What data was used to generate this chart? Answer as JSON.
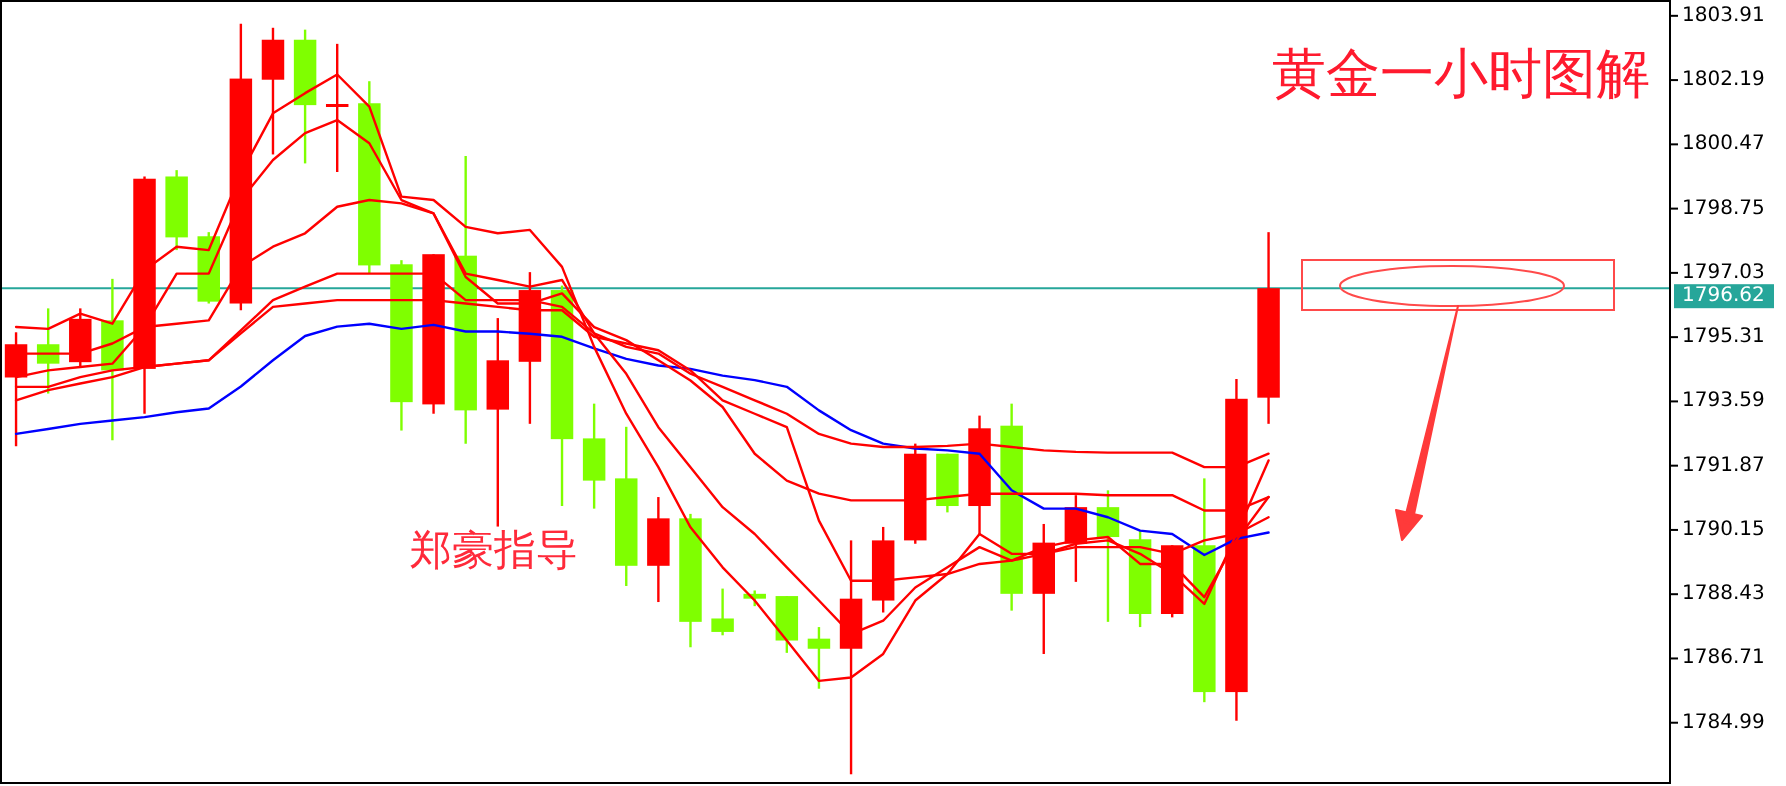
{
  "chart_data": {
    "type": "candlestick",
    "title": "黄金一小时图解",
    "annotations": [
      "郑豪指导"
    ],
    "categories": [
      null,
      null,
      null,
      null,
      null,
      null,
      null,
      null,
      null,
      null,
      null,
      null,
      null,
      null,
      null,
      null,
      null,
      null,
      null,
      null,
      null,
      null,
      null,
      null,
      null,
      null,
      null,
      null,
      null,
      null,
      null,
      null,
      null,
      null,
      null,
      null,
      null,
      null,
      null,
      null,
      null,
      null,
      null,
      null,
      null,
      null,
      null,
      null,
      null,
      null,
      null,
      null
    ],
    "ohlc": [
      [
        1794.23,
        1795.44,
        1792.39,
        1795.12
      ],
      [
        1795.12,
        1796.08,
        1793.8,
        1794.6
      ],
      [
        1794.64,
        1796.08,
        1794.51,
        1795.8
      ],
      [
        1795.76,
        1796.87,
        1792.55,
        1794.42
      ],
      [
        1794.46,
        1799.61,
        1793.26,
        1799.55
      ],
      [
        1799.61,
        1799.78,
        1797.64,
        1797.98
      ],
      [
        1798.01,
        1798.12,
        1796.21,
        1796.26
      ],
      [
        1796.21,
        1803.7,
        1796.03,
        1802.23
      ],
      [
        1802.2,
        1803.59,
        1800.2,
        1803.27
      ],
      [
        1803.27,
        1803.54,
        1799.96,
        1801.52
      ],
      [
        1801.52,
        1803.16,
        1799.73,
        1801.55
      ],
      [
        1801.57,
        1802.16,
        1797.01,
        1797.23
      ],
      [
        1797.26,
        1797.37,
        1792.81,
        1793.57
      ],
      [
        1793.51,
        1797.53,
        1793.26,
        1797.53
      ],
      [
        1797.49,
        1800.16,
        1792.46,
        1793.35
      ],
      [
        1793.37,
        1795.82,
        1790.24,
        1794.69
      ],
      [
        1794.65,
        1797.05,
        1792.99,
        1796.57
      ],
      [
        1796.57,
        1796.69,
        1790.79,
        1792.58
      ],
      [
        1792.6,
        1793.53,
        1790.72,
        1791.47
      ],
      [
        1791.53,
        1792.91,
        1788.65,
        1789.19
      ],
      [
        1789.19,
        1791.03,
        1788.22,
        1790.46
      ],
      [
        1790.46,
        1790.58,
        1787.01,
        1787.69
      ],
      [
        1787.78,
        1788.58,
        1787.33,
        1787.42
      ],
      [
        1788.44,
        1788.53,
        1788.11,
        1788.31
      ],
      [
        1788.38,
        1788.38,
        1786.86,
        1787.19
      ],
      [
        1787.24,
        1787.55,
        1785.9,
        1786.97
      ],
      [
        1786.97,
        1789.87,
        1783.61,
        1788.31
      ],
      [
        1788.26,
        1790.23,
        1787.94,
        1789.87
      ],
      [
        1789.87,
        1792.46,
        1789.78,
        1792.19
      ],
      [
        1792.19,
        1792.19,
        1790.62,
        1790.79
      ],
      [
        1790.79,
        1793.21,
        1790.04,
        1792.87
      ],
      [
        1792.94,
        1793.53,
        1787.99,
        1788.44
      ],
      [
        1788.44,
        1790.31,
        1786.83,
        1789.81
      ],
      [
        1789.78,
        1791.08,
        1788.76,
        1790.76
      ],
      [
        1790.76,
        1791.21,
        1787.69,
        1789.96
      ],
      [
        1789.9,
        1790.14,
        1787.55,
        1787.9
      ],
      [
        1787.9,
        1789.74,
        1787.81,
        1789.74
      ],
      [
        1789.74,
        1791.53,
        1785.54,
        1785.81
      ],
      [
        1785.81,
        1794.19,
        1785.04,
        1793.66
      ],
      [
        1793.69,
        1798.12,
        1792.99,
        1796.62
      ],
      null,
      null,
      null,
      null,
      null,
      null,
      null,
      null,
      null,
      null,
      null,
      null
    ],
    "colors": [
      "#ff0000",
      "#7fff00",
      "#ff0000",
      "#7fff00",
      "#ff0000",
      "#7fff00",
      "#7fff00",
      "#ff0000",
      "#ff0000",
      "#7fff00",
      "#ff0000",
      "#7fff00",
      "#7fff00",
      "#ff0000",
      "#7fff00",
      "#ff0000",
      "#ff0000",
      "#7fff00",
      "#7fff00",
      "#7fff00",
      "#ff0000",
      "#7fff00",
      "#7fff00",
      "#7fff00",
      "#7fff00",
      "#7fff00",
      "#ff0000",
      "#ff0000",
      "#ff0000",
      "#7fff00",
      "#ff0000",
      "#7fff00",
      "#ff0000",
      "#ff0000",
      "#7fff00",
      "#7fff00",
      "#ff0000",
      "#7fff00",
      "#ff0000",
      "#ff0000",
      null,
      null,
      null,
      null,
      null,
      null,
      null,
      null,
      null,
      null,
      null,
      null
    ],
    "series": [
      {
        "type": "line",
        "color": "#0000ff",
        "values": [
          1792.72,
          1792.85,
          1792.99,
          1793.08,
          1793.17,
          1793.3,
          1793.4,
          1793.99,
          1794.69,
          1795.34,
          1795.59,
          1795.67,
          1795.53,
          1795.64,
          1795.46,
          1795.46,
          1795.4,
          1795.32,
          1795.01,
          1794.73,
          1794.55,
          1794.46,
          1794.28,
          1794.16,
          1793.98,
          1793.35,
          1792.82,
          1792.46,
          1792.33,
          1792.28,
          1792.19,
          1791.21,
          1790.72,
          1790.72,
          1790.49,
          1790.13,
          1790.04,
          1789.48,
          1789.91,
          1790.08,
          null,
          null,
          null,
          null,
          null,
          null,
          null,
          null,
          null,
          null,
          null,
          null
        ]
      },
      {
        "type": "line",
        "color": "#ff0000",
        "values": [
          1795.58,
          1795.53,
          1795.94,
          1795.67,
          1797.1,
          1797.73,
          1797.64,
          1799.69,
          1801.3,
          1801.84,
          1802.34,
          1801.48,
          1799.07,
          1798.98,
          1798.26,
          1798.09,
          1798.18,
          1797.19,
          1795.05,
          1793.26,
          1791.83,
          1790.22,
          1789.15,
          1788.26,
          1787.19,
          1786.11,
          1786.2,
          1786.83,
          1788.26,
          1788.97,
          1790.04,
          1789.51,
          1789.51,
          1789.78,
          1789.87,
          1789.51,
          1788.97,
          1788.17,
          1790.04,
          1792.01,
          null,
          null,
          null,
          null,
          null,
          null,
          null,
          null,
          null,
          null,
          null,
          null
        ]
      },
      {
        "type": "line",
        "color": "#ff0000",
        "values": [
          1794.87,
          1794.87,
          1794.87,
          1795.14,
          1795.58,
          1797.01,
          1797.01,
          1798.98,
          1800.05,
          1800.77,
          1801.12,
          1800.5,
          1798.98,
          1798.62,
          1797.01,
          1796.84,
          1796.66,
          1796.84,
          1795.41,
          1794.33,
          1792.9,
          1791.83,
          1790.76,
          1790.04,
          1789.15,
          1788.26,
          1787.36,
          1787.72,
          1788.61,
          1789.15,
          1789.69,
          1789.33,
          1789.69,
          1789.87,
          1789.96,
          1789.24,
          1789.24,
          1788.35,
          1789.87,
          1791.03,
          null,
          null,
          null,
          null,
          null,
          null,
          null,
          null,
          null,
          null,
          null,
          null
        ]
      },
      {
        "type": "line",
        "color": "#ff0000",
        "values": [
          1794.24,
          1794.42,
          1794.51,
          1794.6,
          1795.58,
          1795.67,
          1795.76,
          1797.19,
          1797.73,
          1798.09,
          1798.8,
          1798.98,
          1798.89,
          1798.62,
          1796.92,
          1796.21,
          1796.21,
          1796.48,
          1795.58,
          1795.23,
          1794.69,
          1794.15,
          1793.44,
          1792.19,
          1791.47,
          1791.12,
          1790.94,
          1790.94,
          1790.94,
          1791.03,
          1791.12,
          1791.12,
          1791.12,
          1791.12,
          1791.08,
          1791.08,
          1791.08,
          1790.67,
          1790.67,
          1791.03,
          null,
          null,
          null,
          null,
          null,
          null,
          null,
          null,
          null,
          null,
          null,
          null
        ]
      },
      {
        "type": "line",
        "color": "#ff0000",
        "values": [
          1793.98,
          1793.98,
          1794.24,
          1794.42,
          1794.51,
          1794.6,
          1794.69,
          1795.49,
          1796.3,
          1796.66,
          1797.01,
          1797.01,
          1797.01,
          1797.01,
          1796.3,
          1796.3,
          1796.3,
          1796.12,
          1795.41,
          1795.05,
          1794.87,
          1794.33,
          1793.98,
          1793.62,
          1793.26,
          1792.72,
          1792.46,
          1792.37,
          1792.37,
          1792.4,
          1792.46,
          1792.37,
          1792.28,
          1792.24,
          1792.22,
          1792.22,
          1792.22,
          1791.83,
          1791.83,
          1792.19,
          null,
          null,
          null,
          null,
          null,
          null,
          null,
          null,
          null,
          null,
          null,
          null
        ]
      },
      {
        "type": "line",
        "color": "#ff0000",
        "values": [
          1793.62,
          1793.89,
          1794.07,
          1794.24,
          1794.51,
          1794.6,
          1794.69,
          1795.41,
          1796.12,
          1796.21,
          1796.3,
          1796.3,
          1796.3,
          1796.3,
          1796.21,
          1796.12,
          1796.03,
          1796.03,
          1795.32,
          1795.14,
          1794.96,
          1794.42,
          1793.62,
          1793.26,
          1792.9,
          1790.4,
          1788.79,
          1788.79,
          1788.88,
          1788.97,
          1789.24,
          1789.33,
          1789.51,
          1789.69,
          1789.69,
          1789.69,
          1789.51,
          1789.87,
          1790.04,
          1790.49,
          null,
          null,
          null,
          null,
          null,
          null,
          null,
          null,
          null,
          null,
          null,
          null
        ]
      }
    ],
    "ylim": [
      1783.35,
      1804.28
    ],
    "yticks": [
      1784.99,
      1786.71,
      1788.43,
      1790.15,
      1791.87,
      1793.59,
      1795.31,
      1797.03,
      1798.75,
      1800.47,
      1802.19,
      1803.91
    ],
    "tick_labels": "y",
    "ref_lines": [
      {
        "axis": "y",
        "value": 1796.62,
        "label": "1796.62",
        "color": "#26a69a"
      }
    ]
  }
}
